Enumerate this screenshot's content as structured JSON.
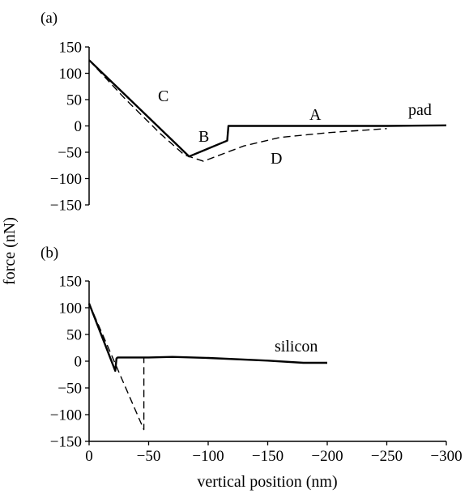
{
  "chart_data": [
    {
      "type": "line",
      "panel_label": "(a)",
      "xlim": [
        0,
        -300
      ],
      "ylim": [
        -150,
        150
      ],
      "yticks": [
        150,
        100,
        50,
        0,
        -50,
        -100,
        -150
      ],
      "ytick_labels": [
        "150",
        "100",
        "50",
        "0",
        "−50",
        "−100",
        "−150"
      ],
      "series": [
        {
          "style": "solid",
          "x": [
            0,
            -84,
            -116,
            -117,
            -118,
            -160,
            -200,
            -250,
            -300
          ],
          "y": [
            125,
            -58,
            -28,
            0,
            0,
            0,
            0,
            0,
            1
          ]
        },
        {
          "style": "dashed",
          "x": [
            0,
            -30,
            -60,
            -80,
            -96,
            -110,
            -130,
            -160,
            -200,
            -250
          ],
          "y": [
            125,
            52,
            -15,
            -55,
            -67,
            -55,
            -38,
            -22,
            -13,
            -5
          ]
        }
      ],
      "annotations": [
        "C",
        "B",
        "A",
        "D",
        "pad"
      ]
    },
    {
      "type": "line",
      "panel_label": "(b)",
      "xlim": [
        0,
        -300
      ],
      "ylim": [
        -150,
        150
      ],
      "yticks": [
        150,
        100,
        50,
        0,
        -50,
        -100,
        -150
      ],
      "ytick_labels": [
        "150",
        "100",
        "50",
        "0",
        "−50",
        "−100",
        "−150"
      ],
      "xticks": [
        0,
        -50,
        -100,
        -150,
        -200,
        -250,
        -300
      ],
      "xtick_labels": [
        "0",
        "−50",
        "−100",
        "−150",
        "−200",
        "−250",
        "−300"
      ],
      "series": [
        {
          "style": "solid",
          "x": [
            0,
            -22,
            -23,
            -24,
            -50,
            -70,
            -100,
            -150,
            -180,
            -200
          ],
          "y": [
            108,
            -18,
            5,
            7,
            7,
            8,
            6,
            1,
            -3,
            -3
          ]
        },
        {
          "style": "dashed",
          "x": [
            0,
            -46,
            -46,
            -47
          ],
          "y": [
            108,
            -128,
            7,
            7
          ]
        }
      ],
      "annotations": [
        "silicon"
      ]
    }
  ],
  "xlabel": "vertical position (nm)",
  "ylabel": "force (nN)"
}
